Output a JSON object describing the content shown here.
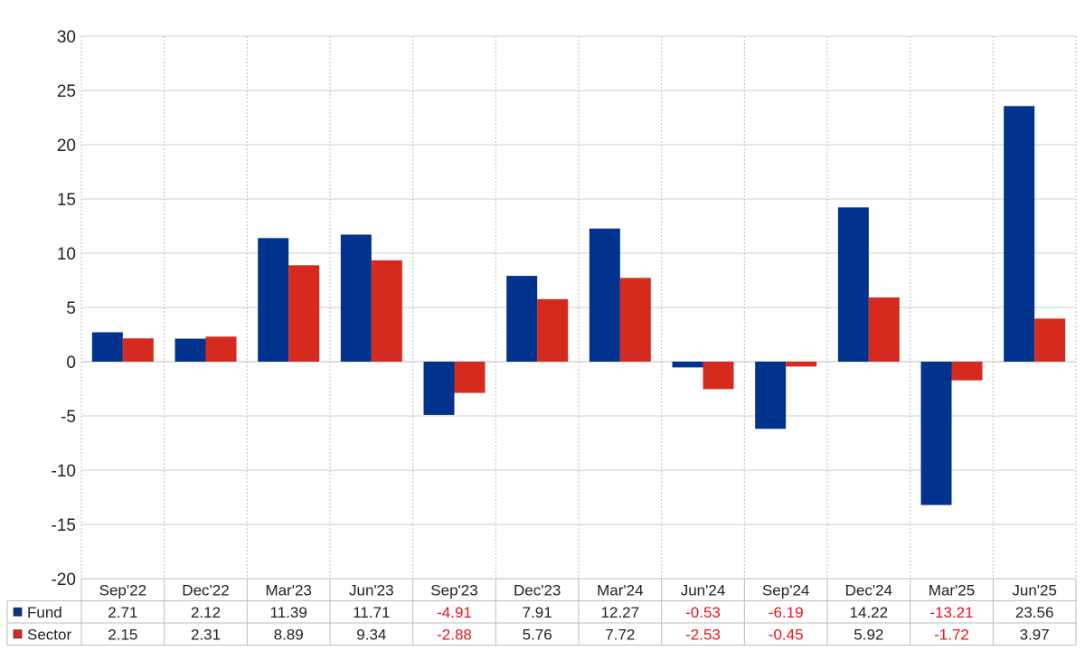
{
  "chart_data": {
    "type": "bar",
    "title": "",
    "xlabel": "",
    "ylabel": "",
    "ylim": [
      -20,
      30
    ],
    "yticks": [
      30,
      25,
      20,
      15,
      10,
      5,
      0,
      -5,
      -10,
      -15,
      -20
    ],
    "grid": true,
    "legend_placement": "data-table-left",
    "categories": [
      "Sep'22",
      "Dec'22",
      "Mar'23",
      "Jun'23",
      "Sep'23",
      "Dec'23",
      "Mar'24",
      "Jun'24",
      "Sep'24",
      "Dec'24",
      "Mar'25",
      "Jun'25"
    ],
    "series": [
      {
        "name": "Fund",
        "color": "#00338d",
        "values": [
          2.71,
          2.12,
          11.39,
          11.71,
          -4.91,
          7.91,
          12.27,
          -0.53,
          -6.19,
          14.22,
          -13.21,
          23.56
        ],
        "labels": [
          "2.71",
          "2.12",
          "11.39",
          "11.71",
          "-4.91",
          "7.91",
          "12.27",
          "-0.53",
          "-6.19",
          "14.22",
          "-13.21",
          "23.56"
        ]
      },
      {
        "name": "Sector",
        "color": "#d52b1e",
        "values": [
          2.15,
          2.31,
          8.89,
          9.34,
          -2.88,
          5.76,
          7.72,
          -2.53,
          -0.45,
          5.92,
          -1.72,
          3.97
        ],
        "labels": [
          "2.15",
          "2.31",
          "8.89",
          "9.34",
          "-2.88",
          "5.76",
          "7.72",
          "-2.53",
          "-0.45",
          "5.92",
          "-1.72",
          "3.97"
        ]
      }
    ],
    "negative_color": "#e8141c"
  }
}
